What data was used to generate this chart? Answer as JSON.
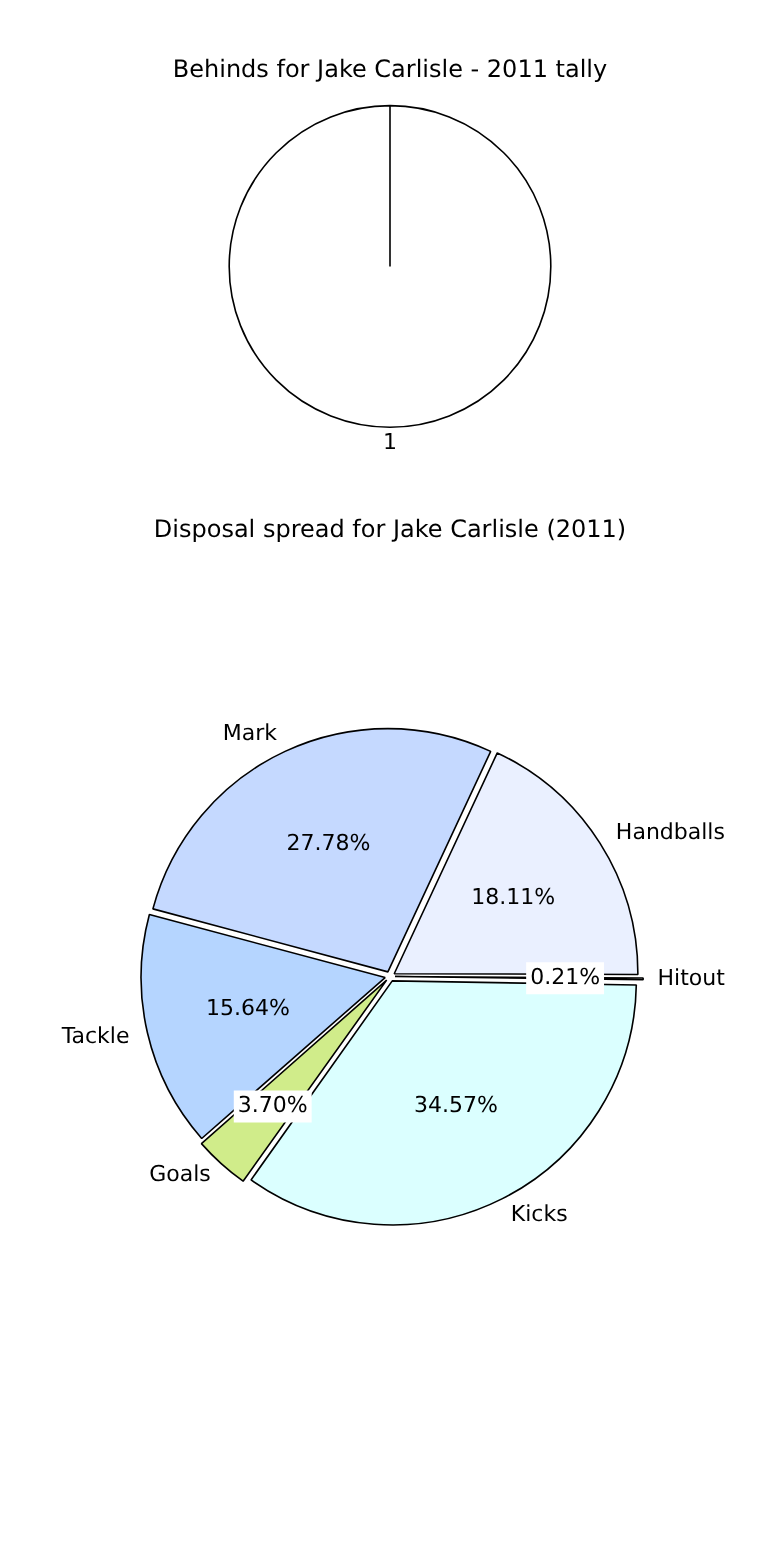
{
  "chart_data": [
    {
      "type": "pie",
      "title": "Behinds for Jake Carlisle - 2011 tally",
      "categories": [
        "1"
      ],
      "values": [
        100
      ],
      "colors": [
        "#ffffff"
      ],
      "legend": false
    },
    {
      "type": "pie",
      "title": "Disposal spread for Jake Carlisle (2011)",
      "categories": [
        "Handballs",
        "Hitout",
        "Kicks",
        "Goals",
        "Tackle",
        "Mark"
      ],
      "values": [
        18.11,
        0.21,
        34.57,
        3.7,
        15.64,
        27.78
      ],
      "colors": [
        "#eaf0ff",
        "#f4f8ff",
        "#dbffff",
        "#d0ec8a",
        "#b5d5ff",
        "#c5d9ff"
      ],
      "value_labels": [
        "18.11%",
        "0.21%",
        "34.57%",
        "3.70%",
        "15.64%",
        "27.78%"
      ],
      "legend": false
    }
  ]
}
